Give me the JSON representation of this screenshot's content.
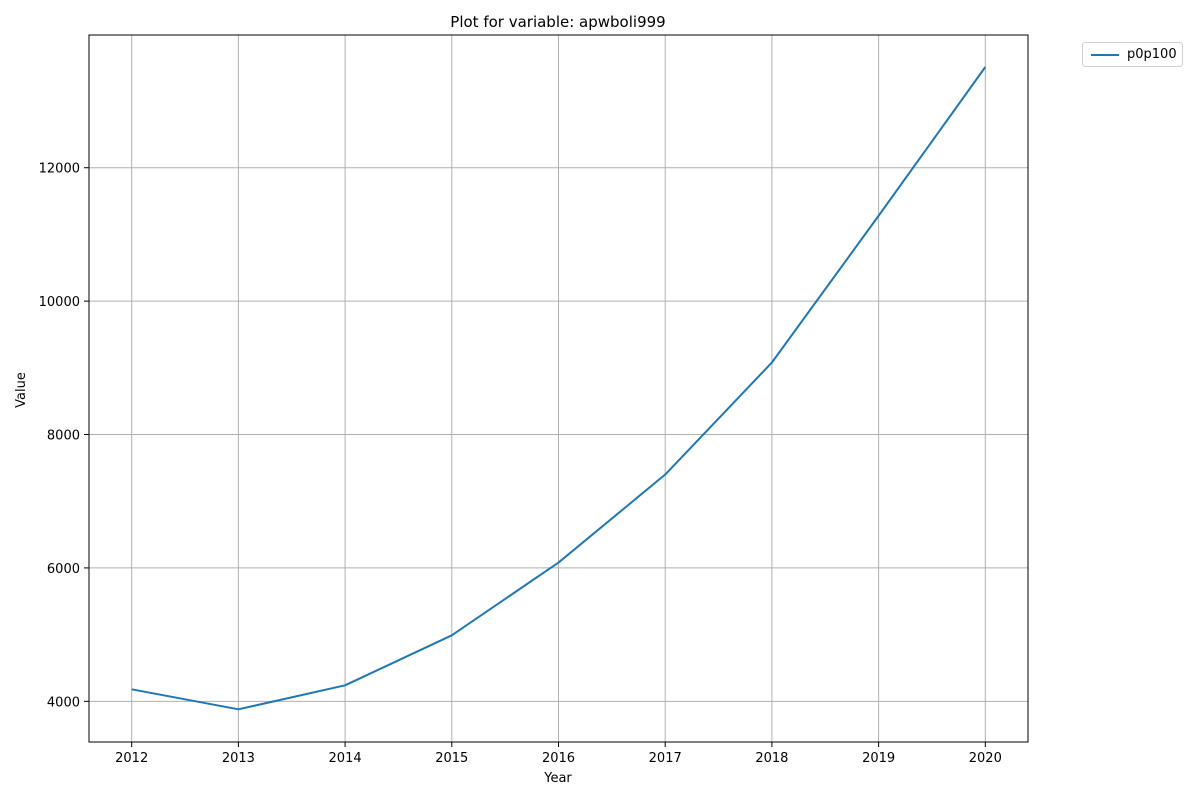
{
  "chart_data": {
    "type": "line",
    "title": "Plot for variable: apwboli999",
    "xlabel": "Year",
    "ylabel": "Value",
    "x": [
      2012,
      2013,
      2014,
      2015,
      2016,
      2017,
      2018,
      2019,
      2020
    ],
    "xlim": [
      2011.6,
      2020.4
    ],
    "ylim": [
      3390,
      13990
    ],
    "xticks": [
      "2012",
      "2013",
      "2014",
      "2015",
      "2016",
      "2017",
      "2018",
      "2019",
      "2020"
    ],
    "yticks": [
      "4000",
      "6000",
      "8000",
      "10000",
      "12000"
    ],
    "grid": true,
    "legend_position": "outside-top-right",
    "series": [
      {
        "name": "p0p100",
        "color": "#1f77b4",
        "values": [
          4180,
          3880,
          4240,
          4990,
          6080,
          7400,
          9080,
          11280,
          13510
        ]
      }
    ]
  }
}
